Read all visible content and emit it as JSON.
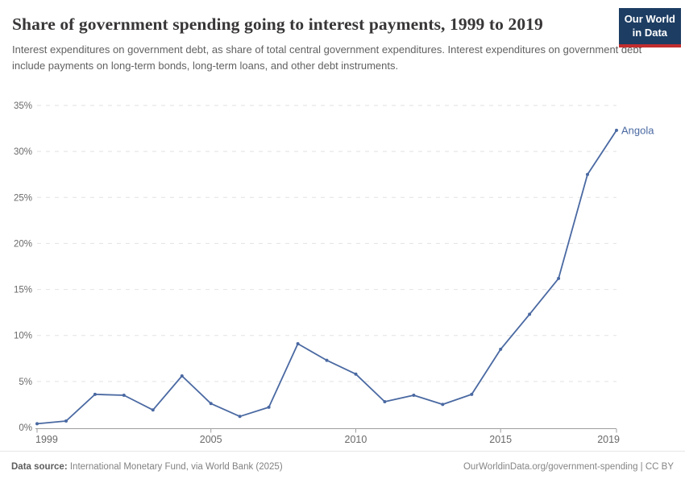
{
  "header": {
    "title": "Share of government spending going to interest payments, 1999 to 2019",
    "subtitle": "Interest expenditures on government debt, as share of total central government expenditures. Interest expenditures on government debt include payments on long-term bonds, long-term loans, and other debt instruments.",
    "logo": {
      "line1": "Our World",
      "line2": "in Data",
      "bg_color": "#1d3d63",
      "accent_color": "#c22d2d"
    }
  },
  "chart_data": {
    "type": "line",
    "title": "Share of government spending going to interest payments, 1999 to 2019",
    "xlabel": "",
    "ylabel": "",
    "x": [
      1999,
      2000,
      2001,
      2002,
      2003,
      2004,
      2005,
      2006,
      2007,
      2008,
      2009,
      2010,
      2011,
      2012,
      2013,
      2014,
      2015,
      2016,
      2017,
      2018,
      2019
    ],
    "series": [
      {
        "name": "Angola",
        "color": "#4a69a2",
        "values": [
          0.4,
          0.7,
          3.6,
          3.5,
          1.9,
          5.6,
          2.6,
          1.2,
          2.2,
          9.1,
          7.3,
          5.8,
          2.8,
          3.5,
          2.5,
          3.6,
          8.5,
          12.3,
          16.2,
          27.5,
          32.3
        ]
      }
    ],
    "xlim": [
      1999,
      2019
    ],
    "ylim": [
      0,
      35
    ],
    "yticks": [
      0,
      5,
      10,
      15,
      20,
      25,
      30,
      35
    ],
    "xticks": [
      1999,
      2005,
      2010,
      2015,
      2019
    ],
    "ytick_suffix": "%",
    "grid": "horizontal-dashed",
    "legend_position": "end-of-line-label",
    "tick_label_color": "#696969",
    "gridline_color": "#e2e2e2",
    "axis_color": "#9e9e9e"
  },
  "footer": {
    "datasource_label": "Data source:",
    "datasource_text": " International Monetary Fund, via World Bank (2025)",
    "link_text": "OurWorldinData.org/government-spending | CC BY"
  }
}
